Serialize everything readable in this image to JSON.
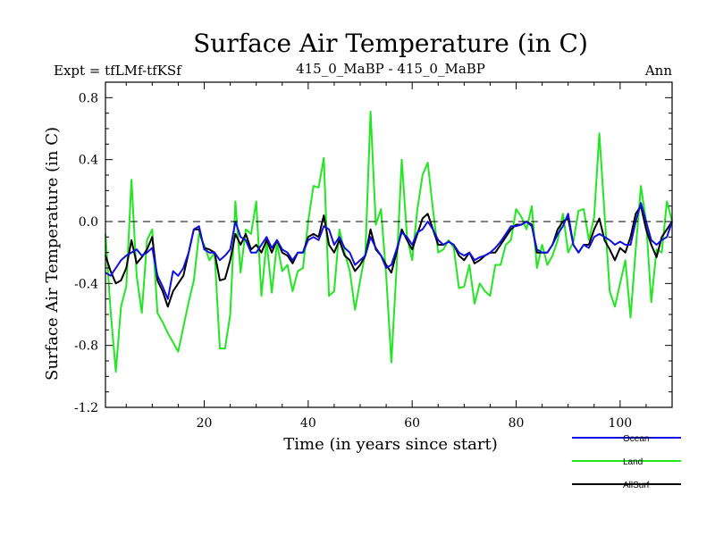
{
  "chart_data": {
    "type": "line",
    "title": "Surface Air Temperature (in C)",
    "subtitle_left": "Expt = tfLMf-tfKSf",
    "subtitle_center": "415_0_MaBP - 415_0_MaBP",
    "subtitle_right": "Ann",
    "xlabel": "Time (in years since start)",
    "ylabel": "Surface Air Temperature (in C)",
    "xlim": [
      1,
      110
    ],
    "ylim": [
      -1.2,
      0.9
    ],
    "x_ticks": [
      20,
      40,
      60,
      80,
      100
    ],
    "x_tick_labels": [
      "20",
      "40",
      "60",
      "80",
      "100"
    ],
    "y_ticks": [
      -1.2,
      -0.8,
      -0.4,
      0.0,
      0.4,
      0.8
    ],
    "y_tick_labels": [
      "-1.2",
      "-0.8",
      "-0.4",
      "0.0",
      "0.4",
      "0.8"
    ],
    "reference_line": 0.0,
    "x_start": 1,
    "legend_position": "bottom-right",
    "series": [
      {
        "name": "Land",
        "color": "#22e622",
        "values": [
          -0.08,
          -0.58,
          -0.97,
          -0.55,
          -0.42,
          0.27,
          -0.35,
          -0.59,
          -0.12,
          -0.05,
          -0.59,
          -0.65,
          -0.72,
          -0.78,
          -0.84,
          -0.68,
          -0.52,
          -0.38,
          -0.08,
          -0.15,
          -0.25,
          -0.2,
          -0.82,
          -0.82,
          -0.6,
          0.13,
          -0.33,
          -0.05,
          -0.08,
          0.13,
          -0.48,
          -0.12,
          -0.46,
          -0.14,
          -0.32,
          -0.28,
          -0.45,
          -0.32,
          -0.3,
          0.0,
          0.23,
          0.22,
          0.41,
          -0.48,
          -0.45,
          -0.05,
          -0.2,
          -0.32,
          -0.57,
          -0.38,
          -0.2,
          0.71,
          -0.02,
          0.08,
          -0.35,
          -0.91,
          -0.3,
          0.4,
          -0.1,
          -0.25,
          0.08,
          0.3,
          0.38,
          0.08,
          -0.2,
          -0.18,
          -0.12,
          -0.17,
          -0.43,
          -0.42,
          -0.28,
          -0.53,
          -0.4,
          -0.45,
          -0.48,
          -0.28,
          -0.28,
          -0.15,
          -0.12,
          0.08,
          0.03,
          -0.05,
          0.1,
          -0.3,
          -0.15,
          -0.28,
          -0.22,
          -0.12,
          0.05,
          -0.2,
          -0.13,
          0.07,
          0.08,
          -0.12,
          0.03,
          0.57,
          0.05,
          -0.45,
          -0.55,
          -0.4,
          -0.25,
          -0.62,
          -0.18,
          0.23,
          0.0,
          -0.52,
          -0.18,
          -0.2,
          0.13,
          0.0
        ],
        "legend_label": "Land"
      },
      {
        "name": "AllSurf",
        "color": "#000000",
        "values": [
          -0.22,
          -0.32,
          -0.4,
          -0.38,
          -0.3,
          -0.12,
          -0.27,
          -0.23,
          -0.18,
          -0.1,
          -0.38,
          -0.45,
          -0.55,
          -0.45,
          -0.4,
          -0.35,
          -0.2,
          -0.05,
          -0.05,
          -0.17,
          -0.18,
          -0.2,
          -0.38,
          -0.37,
          -0.25,
          -0.08,
          -0.15,
          -0.08,
          -0.18,
          -0.15,
          -0.2,
          -0.12,
          -0.2,
          -0.12,
          -0.2,
          -0.22,
          -0.27,
          -0.2,
          -0.2,
          -0.1,
          -0.08,
          -0.1,
          0.04,
          -0.15,
          -0.2,
          -0.12,
          -0.22,
          -0.25,
          -0.32,
          -0.28,
          -0.22,
          -0.05,
          -0.18,
          -0.22,
          -0.28,
          -0.33,
          -0.2,
          -0.05,
          -0.12,
          -0.18,
          -0.08,
          0.02,
          0.05,
          -0.05,
          -0.15,
          -0.15,
          -0.13,
          -0.15,
          -0.22,
          -0.25,
          -0.2,
          -0.27,
          -0.25,
          -0.22,
          -0.2,
          -0.2,
          -0.15,
          -0.1,
          -0.05,
          -0.02,
          -0.02,
          0.0,
          -0.02,
          -0.2,
          -0.2,
          -0.2,
          -0.15,
          -0.05,
          0.0,
          0.02,
          -0.15,
          -0.2,
          -0.15,
          -0.15,
          -0.05,
          0.02,
          -0.12,
          -0.18,
          -0.25,
          -0.17,
          -0.2,
          -0.1,
          0.05,
          0.1,
          -0.05,
          -0.15,
          -0.23,
          -0.1,
          -0.05,
          0.0
        ],
        "legend_label": "AllSurf"
      },
      {
        "name": "Ocean",
        "color": "#1010e0",
        "values": [
          -0.33,
          -0.35,
          -0.3,
          -0.25,
          -0.22,
          -0.2,
          -0.18,
          -0.22,
          -0.2,
          -0.17,
          -0.35,
          -0.42,
          -0.5,
          -0.32,
          -0.35,
          -0.3,
          -0.2,
          -0.05,
          -0.03,
          -0.18,
          -0.2,
          -0.2,
          -0.25,
          -0.22,
          -0.18,
          0.0,
          -0.1,
          -0.12,
          -0.2,
          -0.2,
          -0.15,
          -0.1,
          -0.17,
          -0.12,
          -0.18,
          -0.2,
          -0.25,
          -0.2,
          -0.2,
          -0.12,
          -0.1,
          -0.12,
          -0.03,
          -0.05,
          -0.15,
          -0.1,
          -0.17,
          -0.2,
          -0.28,
          -0.25,
          -0.22,
          -0.1,
          -0.17,
          -0.22,
          -0.3,
          -0.28,
          -0.18,
          -0.07,
          -0.1,
          -0.15,
          -0.07,
          -0.05,
          0.0,
          -0.05,
          -0.12,
          -0.15,
          -0.13,
          -0.15,
          -0.2,
          -0.22,
          -0.2,
          -0.25,
          -0.23,
          -0.22,
          -0.2,
          -0.17,
          -0.13,
          -0.08,
          -0.03,
          -0.03,
          -0.02,
          0.0,
          -0.03,
          -0.18,
          -0.2,
          -0.2,
          -0.15,
          -0.08,
          -0.03,
          0.05,
          -0.15,
          -0.2,
          -0.15,
          -0.17,
          -0.1,
          -0.08,
          -0.1,
          -0.12,
          -0.15,
          -0.13,
          -0.15,
          -0.15,
          0.0,
          0.12,
          0.0,
          -0.12,
          -0.15,
          -0.12,
          -0.1,
          0.0
        ],
        "legend_label": "Ocean"
      }
    ],
    "legend_order": [
      "Ocean",
      "Land",
      "AllSurf"
    ]
  }
}
